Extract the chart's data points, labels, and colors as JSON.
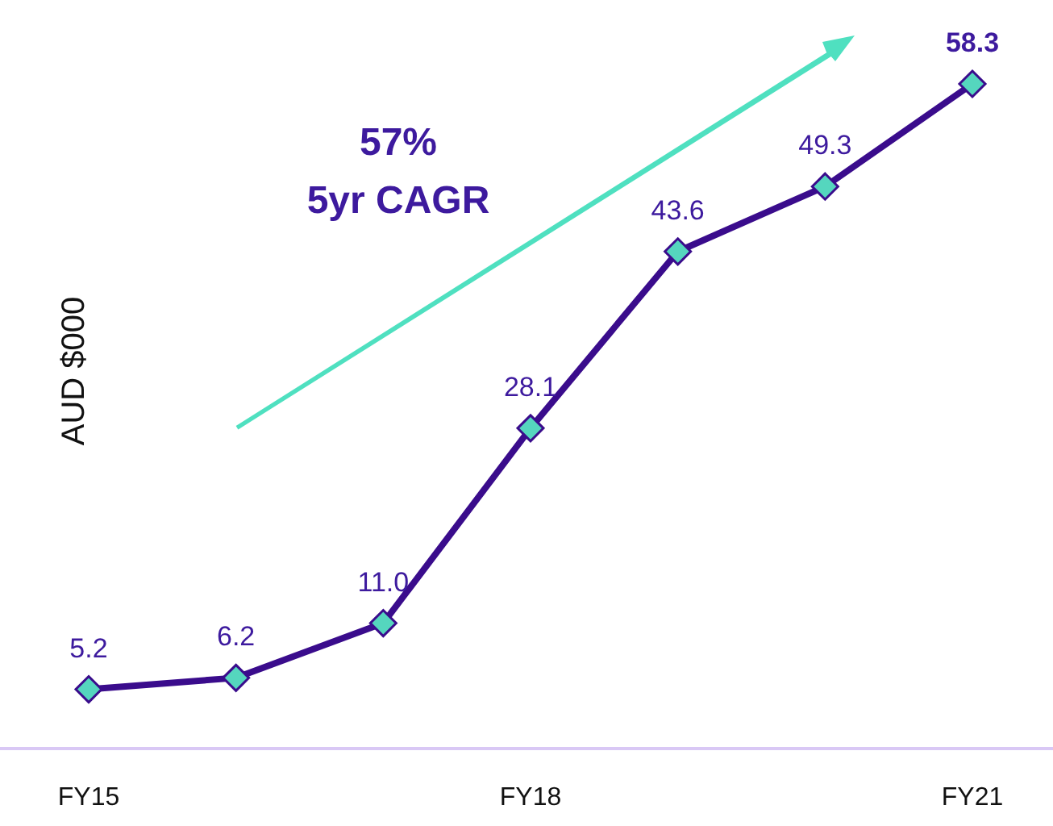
{
  "chart_data": {
    "type": "line",
    "ylabel": "AUD $000",
    "categories": [
      "FY15",
      null,
      null,
      "FY18",
      null,
      null,
      "FY21"
    ],
    "series": [
      {
        "color": "#3a0c8c",
        "values": [
          5.2,
          6.2,
          11.0,
          28.1,
          43.6,
          49.3,
          58.3
        ],
        "value_labels": [
          "5.2",
          "6.2",
          "11.0",
          "28.1",
          "43.6",
          "49.3",
          "58.3"
        ]
      }
    ],
    "marker": "diamond",
    "annotations": [
      "57%",
      "5yr CAGR"
    ]
  }
}
